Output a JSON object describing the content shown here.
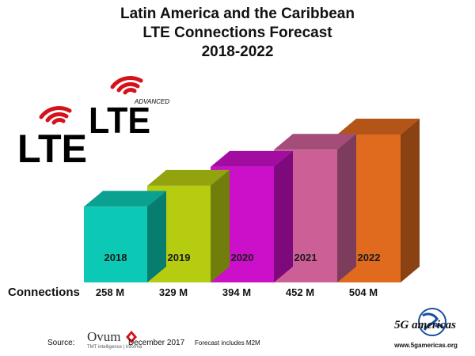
{
  "chart_data": {
    "type": "bar",
    "title": [
      "Latin America and the Caribbean",
      "LTE Connections Forecast",
      "2018-2022"
    ],
    "categories": [
      "2018",
      "2019",
      "2020",
      "2021",
      "2022"
    ],
    "values": [
      258,
      329,
      394,
      452,
      504
    ],
    "value_labels": [
      "258 M",
      "329 M",
      "394 M",
      "452 M",
      "504 M"
    ],
    "row_label": "Connections",
    "bar_colors": [
      "#0cc9b5",
      "#b6cc11",
      "#cc0fc9",
      "#cc6096",
      "#e06a1e"
    ],
    "grid": false,
    "legend": "none"
  },
  "logos": {
    "lte": "LTE",
    "lte_advanced": "LTE",
    "advanced": "ADVANCED"
  },
  "footer": {
    "source_label": "Source:",
    "ovum": "Ovum",
    "ovum_sub": "TMT intelligence | Informa",
    "date": "December 2017",
    "note": "Forecast includes M2M"
  },
  "brand": {
    "name": "5G americas",
    "url": "www.5gamericas.org"
  }
}
